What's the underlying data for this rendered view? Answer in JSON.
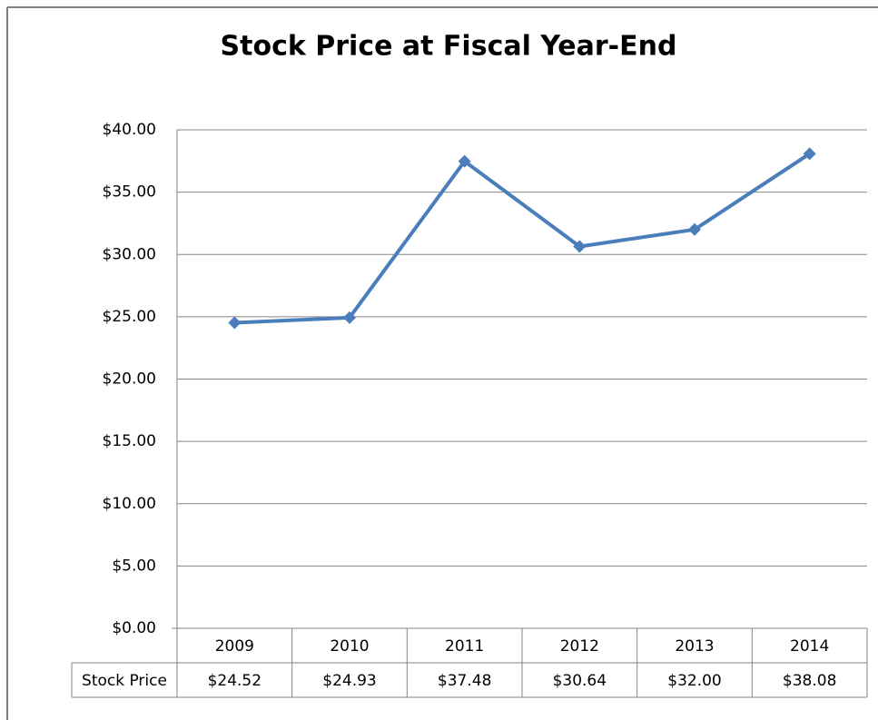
{
  "chart_data": {
    "type": "line",
    "title": "Stock Price at Fiscal Year-End",
    "categories": [
      "2009",
      "2010",
      "2011",
      "2012",
      "2013",
      "2014"
    ],
    "series": [
      {
        "name": "Stock Price",
        "color": "#4a7ebb",
        "values": [
          24.52,
          24.93,
          37.48,
          30.64,
          32.0,
          38.08
        ],
        "value_labels": [
          "$24.52",
          "$24.93",
          "$37.48",
          "$30.64",
          "$32.00",
          "$38.08"
        ]
      }
    ],
    "ylim": [
      0,
      40
    ],
    "yticks": [
      {
        "value": 0,
        "label": "$0.00"
      },
      {
        "value": 5,
        "label": "$5.00"
      },
      {
        "value": 10,
        "label": "$10.00"
      },
      {
        "value": 15,
        "label": "$15.00"
      },
      {
        "value": 20,
        "label": "$20.00"
      },
      {
        "value": 25,
        "label": "$25.00"
      },
      {
        "value": 30,
        "label": "$30.00"
      },
      {
        "value": 35,
        "label": "$35.00"
      },
      {
        "value": 40,
        "label": "$40.00"
      }
    ],
    "grid": true,
    "data_table": true
  }
}
